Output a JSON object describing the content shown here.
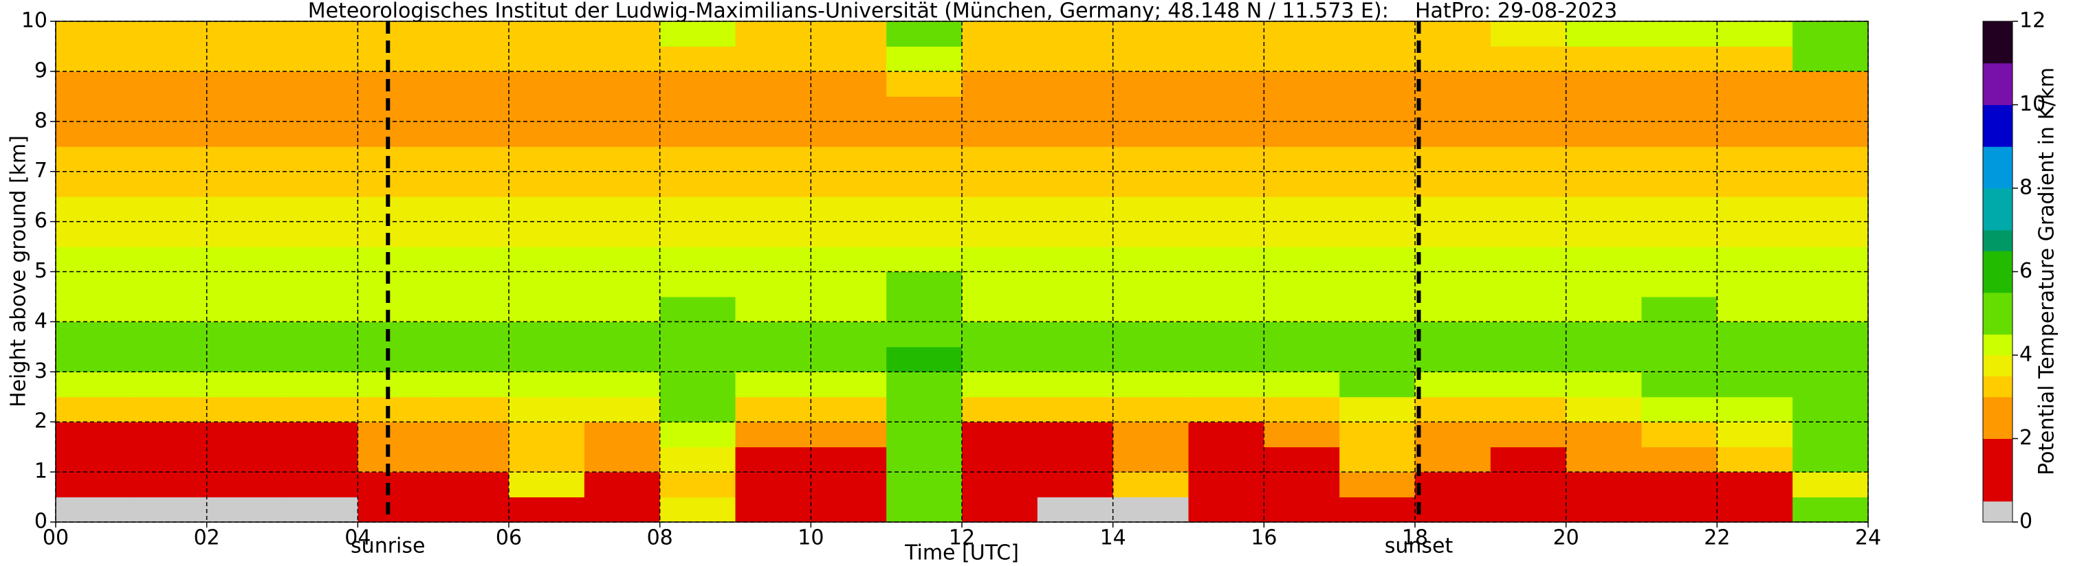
{
  "chart_data": {
    "type": "heatmap",
    "title": "Meteorologisches Institut der Ludwig-Maximilians-Universität (München, Germany; 48.148 N / 11.573 E):    HatPro: 29-08-2023",
    "xlabel": "Time [UTC]",
    "ylabel": "Height above ground [km]",
    "colorbar_label": "Potential Temperature Gradient in K/km",
    "x": [
      0,
      1,
      2,
      3,
      4,
      5,
      6,
      7,
      8,
      9,
      10,
      11,
      12,
      13,
      14,
      15,
      16,
      17,
      18,
      19,
      20,
      21,
      22,
      23,
      24
    ],
    "y": [
      0,
      0.5,
      1,
      1.5,
      2,
      2.5,
      3,
      3.5,
      4,
      4.5,
      5,
      5.5,
      6,
      6.5,
      7,
      7.5,
      8,
      8.5,
      9,
      9.5,
      10
    ],
    "z": [
      [
        0.4,
        0.4,
        0.4,
        0.4,
        0.5,
        1.5,
        1.4,
        1.5,
        3.5,
        0.8,
        0.6,
        4.5,
        0.5,
        0.4,
        0.4,
        0.5,
        0.5,
        1.4,
        1.5,
        0.8,
        0.8,
        1.6,
        1.6,
        4.5
      ],
      [
        1.2,
        1.2,
        1.2,
        1.3,
        1.4,
        1.5,
        3.5,
        1.6,
        3.2,
        1.3,
        1.3,
        4.8,
        1.2,
        1.2,
        3,
        1.2,
        1.3,
        2.2,
        1.5,
        1.3,
        1.4,
        1.8,
        1.8,
        3.8
      ],
      [
        1.4,
        1.4,
        1.4,
        1.5,
        2.2,
        2.5,
        3.2,
        2.4,
        3.5,
        1.5,
        1.6,
        5,
        1.4,
        1.4,
        2.8,
        1.4,
        1.5,
        3.2,
        2.4,
        1.5,
        2.4,
        2.8,
        3,
        4.6
      ],
      [
        1.8,
        1.8,
        1.8,
        1.9,
        2.5,
        2.6,
        3.4,
        2.6,
        4,
        2.4,
        2.4,
        5,
        1.9,
        1.8,
        2.8,
        1.8,
        2.2,
        3.4,
        2.6,
        2.4,
        2.8,
        3.4,
        3.6,
        4.8
      ],
      [
        3.2,
        3.2,
        3.2,
        3.2,
        3.3,
        3.4,
        3.8,
        3.5,
        4.6,
        3.4,
        3.4,
        5.2,
        3.2,
        3.2,
        3.4,
        3.2,
        3.3,
        3.8,
        3.4,
        3.4,
        3.8,
        4.2,
        4.4,
        4.8
      ],
      [
        4,
        4,
        4,
        4,
        4,
        4.2,
        4.4,
        4.1,
        4.8,
        4.1,
        4.2,
        5.4,
        4,
        4,
        4.2,
        4,
        4.1,
        4.6,
        4.1,
        4.1,
        4.4,
        4.8,
        4.6,
        4.8
      ],
      [
        4.6,
        4.6,
        4.6,
        4.6,
        4.6,
        4.7,
        4.9,
        4.7,
        5,
        4.7,
        4.8,
        5.6,
        4.6,
        4.6,
        4.8,
        4.6,
        4.7,
        5,
        4.7,
        4.7,
        4.9,
        5.2,
        5,
        4.9
      ],
      [
        4.8,
        4.8,
        4.8,
        4.8,
        4.8,
        4.8,
        5,
        4.8,
        5,
        4.8,
        4.9,
        5.4,
        4.8,
        4.8,
        5,
        4.8,
        4.8,
        5,
        4.8,
        4.8,
        5,
        5.2,
        5,
        4.9
      ],
      [
        4.3,
        4.3,
        4.3,
        4.3,
        4.3,
        4.3,
        4.3,
        4.3,
        4.6,
        4.3,
        4.3,
        5,
        4.3,
        4.3,
        4.3,
        4.3,
        4.3,
        4.3,
        4.3,
        4.3,
        4.3,
        4.6,
        4.3,
        4.3
      ],
      [
        4.1,
        4.1,
        4.1,
        4.1,
        4.1,
        4.1,
        4.1,
        4.1,
        4.1,
        4.1,
        4.1,
        4.6,
        4.1,
        4.1,
        4.1,
        4.1,
        4.1,
        4.1,
        4.1,
        4.1,
        4.1,
        4.1,
        4.1,
        4.1
      ],
      [
        4,
        4,
        4,
        4,
        4,
        4,
        4,
        4,
        4,
        4,
        4,
        4.3,
        4,
        4,
        4,
        4,
        4,
        4,
        4,
        4,
        4,
        4,
        4,
        4
      ],
      [
        3.8,
        3.8,
        3.8,
        3.8,
        3.8,
        3.8,
        3.8,
        3.8,
        3.8,
        3.8,
        3.8,
        3.8,
        3.8,
        3.8,
        3.8,
        3.8,
        3.8,
        3.8,
        3.8,
        3.8,
        3.8,
        3.8,
        3.8,
        3.8
      ],
      [
        3.6,
        3.6,
        3.6,
        3.6,
        3.6,
        3.6,
        3.6,
        3.6,
        3.6,
        3.6,
        3.6,
        3.6,
        3.6,
        3.6,
        3.6,
        3.6,
        3.6,
        3.6,
        3.6,
        3.6,
        3.6,
        3.6,
        3.6,
        3.6
      ],
      [
        3.3,
        3.3,
        3.3,
        3.3,
        3.3,
        3.3,
        3.3,
        3.3,
        3.3,
        3.3,
        3.3,
        3.3,
        3.3,
        3.3,
        3.3,
        3.3,
        3.3,
        3.3,
        3.3,
        3.3,
        3.3,
        3.3,
        3.3,
        3.3
      ],
      [
        3.1,
        3.1,
        3.1,
        3.1,
        3.1,
        3.1,
        3.1,
        3.1,
        3.1,
        3.1,
        3.1,
        3.1,
        3.1,
        3.1,
        3.1,
        3.1,
        3.1,
        3.1,
        3.1,
        3.1,
        3.1,
        3.1,
        3.1,
        3.1
      ],
      [
        2.8,
        2.8,
        2.8,
        2.8,
        2.8,
        2.8,
        2.8,
        2.8,
        2.8,
        2.8,
        2.8,
        2.8,
        2.8,
        2.8,
        2.8,
        2.8,
        2.8,
        2.8,
        2.8,
        2.8,
        2.8,
        2.8,
        2.8,
        2.8
      ],
      [
        2.4,
        2.4,
        2.4,
        2.4,
        2.4,
        2.4,
        2.4,
        2.4,
        2.4,
        2.4,
        2.4,
        2.4,
        2.4,
        2.4,
        2.4,
        2.4,
        2.4,
        2.4,
        2.4,
        2.4,
        2.4,
        2.4,
        2.4,
        2.4
      ],
      [
        2.5,
        2.5,
        2.5,
        2.5,
        2.5,
        2.5,
        2.5,
        2.5,
        2.5,
        2.5,
        2.5,
        3,
        2.5,
        2.5,
        2.5,
        2.5,
        2.5,
        2.5,
        2.5,
        2.5,
        2.5,
        2.5,
        2.5,
        2.5
      ],
      [
        3,
        3,
        3,
        3,
        3,
        3,
        3,
        3,
        3,
        3,
        3,
        4.4,
        3,
        3,
        3,
        3,
        3,
        3,
        3,
        3,
        3,
        3,
        3,
        4.8
      ],
      [
        3.4,
        3.4,
        3.4,
        3.4,
        3.4,
        3.4,
        3.4,
        3.4,
        4,
        3.4,
        3.4,
        5.2,
        3.4,
        3.4,
        3.4,
        3.4,
        3.4,
        3.4,
        3.4,
        3.8,
        4.2,
        4.3,
        4.3,
        5.2
      ]
    ],
    "colorscale": [
      {
        "value": 0,
        "color": "#cccccc"
      },
      {
        "value": 0.5,
        "color": "#dd0000"
      },
      {
        "value": 2,
        "color": "#ff9900"
      },
      {
        "value": 3,
        "color": "#ffcc00"
      },
      {
        "value": 3.5,
        "color": "#eeee00"
      },
      {
        "value": 4,
        "color": "#ccff00"
      },
      {
        "value": 4.5,
        "color": "#66dd00"
      },
      {
        "value": 5.5,
        "color": "#22bb00"
      },
      {
        "value": 6.5,
        "color": "#009966"
      },
      {
        "value": 7,
        "color": "#00aaaa"
      },
      {
        "value": 8,
        "color": "#0099dd"
      },
      {
        "value": 9,
        "color": "#0000cc"
      },
      {
        "value": 10,
        "color": "#7711aa"
      },
      {
        "value": 11,
        "color": "#220022"
      },
      {
        "value": 12,
        "color": "#000000"
      }
    ],
    "xlim": [
      0,
      24
    ],
    "ylim": [
      0,
      10
    ],
    "clim": [
      0,
      12
    ],
    "xticks": [
      {
        "value": 0,
        "label": "00"
      },
      {
        "value": 2,
        "label": "02"
      },
      {
        "value": 4,
        "label": "04"
      },
      {
        "value": 6,
        "label": "06"
      },
      {
        "value": 8,
        "label": "08"
      },
      {
        "value": 10,
        "label": "10"
      },
      {
        "value": 12,
        "label": "12"
      },
      {
        "value": 14,
        "label": "14"
      },
      {
        "value": 16,
        "label": "16"
      },
      {
        "value": 18,
        "label": "18"
      },
      {
        "value": 20,
        "label": "20"
      },
      {
        "value": 22,
        "label": "22"
      },
      {
        "value": 24,
        "label": "24"
      }
    ],
    "yticks": [
      0,
      1,
      2,
      3,
      4,
      5,
      6,
      7,
      8,
      9,
      10
    ],
    "cticks": [
      0,
      2,
      4,
      6,
      8,
      10,
      12
    ],
    "grid": true,
    "annotations": [
      {
        "x": 4.4,
        "label": "sunrise"
      },
      {
        "x": 18.05,
        "label": "sunset"
      }
    ]
  }
}
